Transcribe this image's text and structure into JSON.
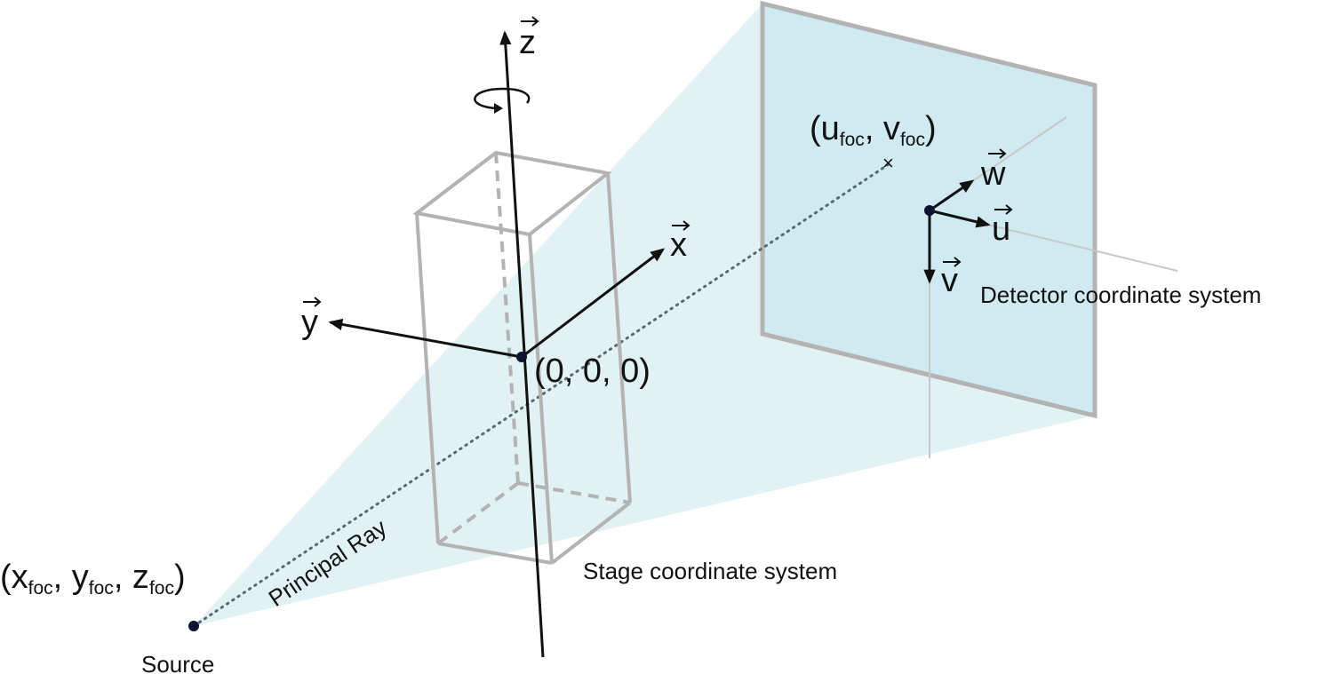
{
  "labels": {
    "source_coord_main_x": "(x",
    "source_coord_sub_x": "foc",
    "source_coord_sep_y": ", y",
    "source_coord_sub_y": "foc",
    "source_coord_sep_z": ", z",
    "source_coord_sub_z": "foc",
    "source_coord_close": ")",
    "source": "Source",
    "principal_ray": "Principal Ray",
    "origin": "(0, 0, 0)",
    "stage_system": "Stage coordinate system",
    "detector_system": "Detector coordinate system",
    "focal_open": "(u",
    "focal_sub_u": "foc",
    "focal_sep_v": ", v",
    "focal_sub_v": "foc",
    "focal_close": ")",
    "axis_x": "x",
    "axis_y": "y",
    "axis_z": "z",
    "axis_u": "u",
    "axis_v": "v",
    "axis_w": "w",
    "vector_arrow": "⃗",
    "cross": "×"
  },
  "colors": {
    "beam": "#cdeaec",
    "detector": "#cfeaf0",
    "frame": "#b3b3b3",
    "axis": "#111111",
    "thin_line": "#c8c8c8",
    "ray": "#5b6870",
    "dot": "#0e1430"
  }
}
